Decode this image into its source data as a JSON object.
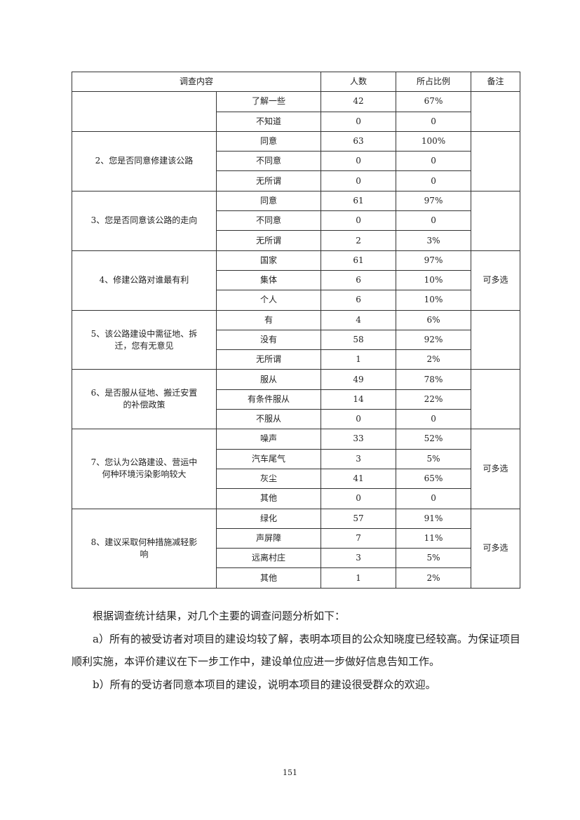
{
  "table": {
    "headers": {
      "content": "调查内容",
      "count": "人数",
      "ratio": "所占比例",
      "note": "备注"
    },
    "groups": [
      {
        "question": "",
        "note": "",
        "rows": [
          {
            "option": "了解一些",
            "count": "42",
            "ratio": "67%"
          },
          {
            "option": "不知道",
            "count": "0",
            "ratio": "0"
          }
        ]
      },
      {
        "question": "2、您是否同意修建该公路",
        "note": "",
        "rows": [
          {
            "option": "同意",
            "count": "63",
            "ratio": "100%"
          },
          {
            "option": "不同意",
            "count": "0",
            "ratio": "0"
          },
          {
            "option": "无所谓",
            "count": "0",
            "ratio": "0"
          }
        ]
      },
      {
        "question": "3、您是否同意该公路的走向",
        "note": "",
        "rows": [
          {
            "option": "同意",
            "count": "61",
            "ratio": "97%"
          },
          {
            "option": "不同意",
            "count": "0",
            "ratio": "0"
          },
          {
            "option": "无所谓",
            "count": "2",
            "ratio": "3%"
          }
        ]
      },
      {
        "question": "4、修建公路对谁最有利",
        "note": "可多选",
        "rows": [
          {
            "option": "国家",
            "count": "61",
            "ratio": "97%"
          },
          {
            "option": "集体",
            "count": "6",
            "ratio": "10%"
          },
          {
            "option": "个人",
            "count": "6",
            "ratio": "10%"
          }
        ]
      },
      {
        "question": "5、该公路建设中需征地、拆迁，您有无意见",
        "note": "",
        "rows": [
          {
            "option": "有",
            "count": "4",
            "ratio": "6%"
          },
          {
            "option": "没有",
            "count": "58",
            "ratio": "92%"
          },
          {
            "option": "无所谓",
            "count": "1",
            "ratio": "2%"
          }
        ]
      },
      {
        "question": "6、是否服从征地、搬迁安置的补偿政策",
        "note": "",
        "rows": [
          {
            "option": "服从",
            "count": "49",
            "ratio": "78%"
          },
          {
            "option": "有条件服从",
            "count": "14",
            "ratio": "22%"
          },
          {
            "option": "不服从",
            "count": "0",
            "ratio": "0"
          }
        ]
      },
      {
        "question": "7、您认为公路建设、营运中何种环境污染影响较大",
        "note": "可多选",
        "rows": [
          {
            "option": "噪声",
            "count": "33",
            "ratio": "52%"
          },
          {
            "option": "汽车尾气",
            "count": "3",
            "ratio": "5%"
          },
          {
            "option": "灰尘",
            "count": "41",
            "ratio": "65%"
          },
          {
            "option": "其他",
            "count": "0",
            "ratio": "0"
          }
        ]
      },
      {
        "question": "8、建议采取何种措施减轻影响",
        "note": "可多选",
        "rows": [
          {
            "option": "绿化",
            "count": "57",
            "ratio": "91%"
          },
          {
            "option": "声屏障",
            "count": "7",
            "ratio": "11%"
          },
          {
            "option": "远离村庄",
            "count": "3",
            "ratio": "5%"
          },
          {
            "option": "其他",
            "count": "1",
            "ratio": "2%"
          }
        ]
      }
    ]
  },
  "text": {
    "intro": "根据调查统计结果，对几个主要的调查问题分析如下：",
    "para_a_1": "a）所有的被受访者对项目的建设均较了解，表明本项目的公众知晓度已经较高。为保证项目顺利实施，本评价建议在下一步工作中，建设单位应进一步做好信息告知工作。",
    "para_b": "b）所有的受访者同意本项目的建设，说明本项目的建设很受群众的欢迎。"
  },
  "page_number": "151"
}
